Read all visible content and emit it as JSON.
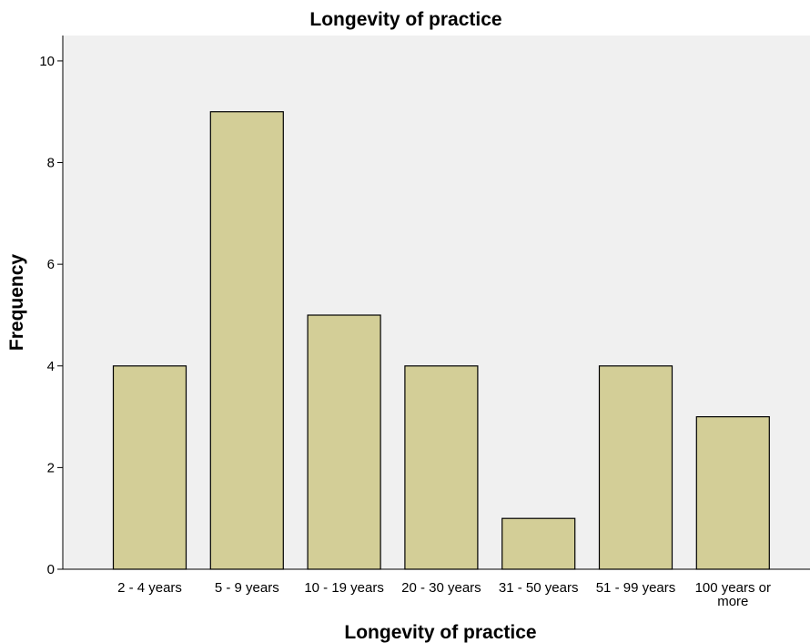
{
  "chart_data": {
    "type": "bar",
    "title": "Longevity of practice",
    "xlabel": "Longevity of practice",
    "ylabel": "Frequency",
    "categories": [
      "2 - 4 years",
      "5 - 9 years",
      "10 - 19 years",
      "20 - 30 years",
      "31 - 50 years",
      "51 - 99 years",
      "100 years or more"
    ],
    "values": [
      4,
      9,
      5,
      4,
      1,
      4,
      3
    ],
    "ylim": [
      0,
      10.5
    ],
    "yticks": [
      0,
      2,
      4,
      6,
      8,
      10
    ],
    "grid": false,
    "colors": {
      "bar_fill": "#d3ce97",
      "bar_stroke": "#000000",
      "plot_background": "#f0f0f0"
    }
  }
}
